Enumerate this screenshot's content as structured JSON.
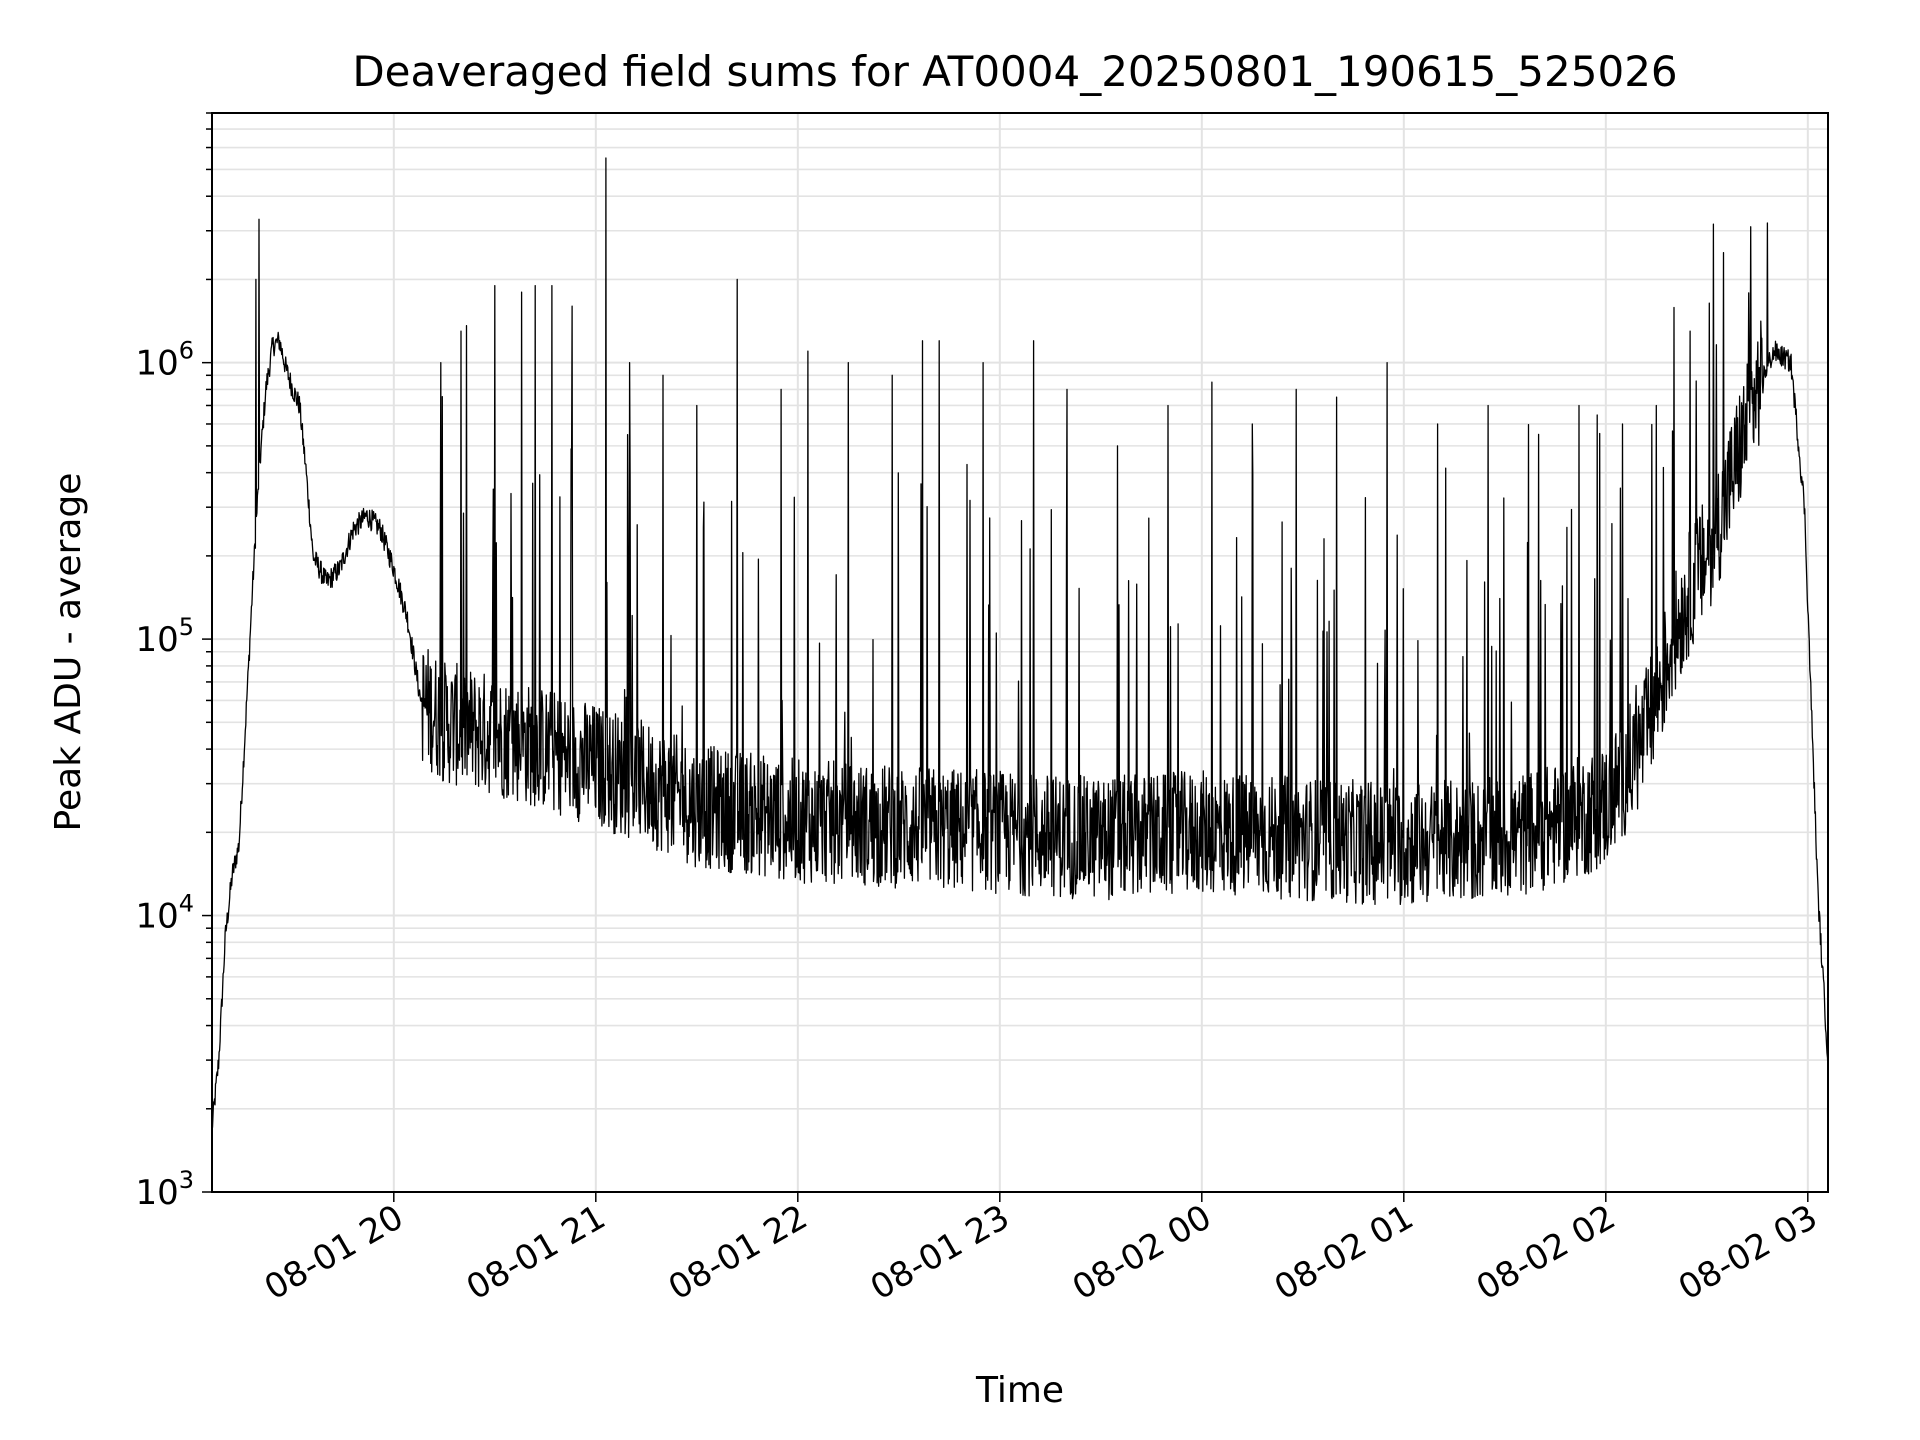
{
  "chart_data": {
    "type": "line",
    "title": "Deaveraged field sums for AT0004_20250801_190615_525026",
    "xlabel": "Time",
    "ylabel": "Peak ADU - average",
    "yscale": "log",
    "ylim": [
      1000,
      8000000
    ],
    "xlim": [
      "2025-08-01 19:06",
      "2025-08-02 03:06"
    ],
    "grid": true,
    "line_color": "#000000",
    "grid_color": "#e3e3e3",
    "x_ticks": [
      {
        "at": "2025-08-01 20:00",
        "label": "08-01 20"
      },
      {
        "at": "2025-08-01 21:00",
        "label": "08-01 21"
      },
      {
        "at": "2025-08-01 22:00",
        "label": "08-01 22"
      },
      {
        "at": "2025-08-01 23:00",
        "label": "08-01 23"
      },
      {
        "at": "2025-08-02 00:00",
        "label": "08-02 00"
      },
      {
        "at": "2025-08-02 01:00",
        "label": "08-02 01"
      },
      {
        "at": "2025-08-02 02:00",
        "label": "08-02 02"
      },
      {
        "at": "2025-08-02 03:00",
        "label": "08-02 03"
      }
    ],
    "y_ticks": [
      {
        "value": 1000,
        "base": "10",
        "exp": "3"
      },
      {
        "value": 10000,
        "base": "10",
        "exp": "4"
      },
      {
        "value": 100000,
        "base": "10",
        "exp": "5"
      },
      {
        "value": 1000000,
        "base": "10",
        "exp": "6"
      }
    ],
    "series": [
      {
        "x": [
          "2025-08-01 19:06",
          "2025-08-01 19:08",
          "2025-08-01 19:10",
          "2025-08-01 19:12",
          "2025-08-01 19:14",
          "2025-08-01 19:16",
          "2025-08-01 19:18",
          "2025-08-01 19:20",
          "2025-08-01 19:22",
          "2025-08-01 19:24",
          "2025-08-01 19:26",
          "2025-08-01 19:28",
          "2025-08-01 19:30",
          "2025-08-01 19:32",
          "2025-08-01 19:34",
          "2025-08-01 19:36",
          "2025-08-01 19:40",
          "2025-08-01 19:44",
          "2025-08-01 19:48",
          "2025-08-01 19:52",
          "2025-08-01 19:56",
          "2025-08-01 20:00",
          "2025-08-01 20:04",
          "2025-08-01 20:08",
          "2025-08-01 20:15",
          "2025-08-01 20:30",
          "2025-08-01 20:45",
          "2025-08-01 21:00",
          "2025-08-01 21:15",
          "2025-08-01 21:30",
          "2025-08-01 22:00",
          "2025-08-01 22:30",
          "2025-08-01 23:00",
          "2025-08-01 23:30",
          "2025-08-02 00:00",
          "2025-08-02 00:30",
          "2025-08-02 01:00",
          "2025-08-02 01:30",
          "2025-08-02 01:50",
          "2025-08-02 02:00",
          "2025-08-02 02:10",
          "2025-08-02 02:15",
          "2025-08-02 02:20",
          "2025-08-02 02:25",
          "2025-08-02 02:30",
          "2025-08-02 02:35",
          "2025-08-02 02:40",
          "2025-08-02 02:45",
          "2025-08-02 02:50",
          "2025-08-02 02:55",
          "2025-08-02 02:59",
          "2025-08-02 03:01",
          "2025-08-02 03:03",
          "2025-08-02 03:06"
        ],
        "y": [
          1700,
          3000,
          8500,
          14000,
          18000,
          50000,
          150000,
          400000,
          800000,
          1150000,
          1200000,
          950000,
          800000,
          700000,
          400000,
          200000,
          160000,
          180000,
          250000,
          280000,
          250000,
          180000,
          120000,
          60000,
          50000,
          45000,
          40000,
          35000,
          30000,
          25000,
          22000,
          21000,
          20000,
          19000,
          20000,
          19000,
          18000,
          19000,
          22000,
          25000,
          40000,
          60000,
          100000,
          150000,
          200000,
          300000,
          500000,
          800000,
          1100000,
          1000000,
          300000,
          60000,
          12000,
          3000
        ],
        "spikes": [
          [
            "2025-08-01 19:20",
            3300000
          ],
          [
            "2025-08-01 19:19",
            2000000
          ],
          [
            "2025-08-01 20:14",
            1000000
          ],
          [
            "2025-08-01 20:20",
            1300000
          ],
          [
            "2025-08-01 20:30",
            1900000
          ],
          [
            "2025-08-01 20:38",
            1800000
          ],
          [
            "2025-08-01 20:42",
            1900000
          ],
          [
            "2025-08-01 20:47",
            1900000
          ],
          [
            "2025-08-01 20:53",
            1600000
          ],
          [
            "2025-08-01 21:03",
            5500000
          ],
          [
            "2025-08-01 21:10",
            1000000
          ],
          [
            "2025-08-01 21:20",
            900000
          ],
          [
            "2025-08-01 21:30",
            700000
          ],
          [
            "2025-08-01 21:42",
            2000000
          ],
          [
            "2025-08-01 21:55",
            800000
          ],
          [
            "2025-08-01 22:03",
            1100000
          ],
          [
            "2025-08-01 22:15",
            1000000
          ],
          [
            "2025-08-01 22:28",
            900000
          ],
          [
            "2025-08-01 22:37",
            1200000
          ],
          [
            "2025-08-01 22:42",
            1200000
          ],
          [
            "2025-08-01 22:55",
            1000000
          ],
          [
            "2025-08-01 23:10",
            1200000
          ],
          [
            "2025-08-01 23:20",
            800000
          ],
          [
            "2025-08-01 23:35",
            500000
          ],
          [
            "2025-08-01 23:50",
            700000
          ],
          [
            "2025-08-02 00:03",
            850000
          ],
          [
            "2025-08-02 00:15",
            600000
          ],
          [
            "2025-08-02 00:28",
            800000
          ],
          [
            "2025-08-02 00:40",
            750000
          ],
          [
            "2025-08-02 00:55",
            1000000
          ],
          [
            "2025-08-02 01:10",
            600000
          ],
          [
            "2025-08-02 01:25",
            700000
          ],
          [
            "2025-08-02 01:40",
            550000
          ],
          [
            "2025-08-02 01:52",
            700000
          ],
          [
            "2025-08-02 02:05",
            600000
          ],
          [
            "2025-08-02 02:15",
            700000
          ],
          [
            "2025-08-02 02:25",
            1300000
          ],
          [
            "2025-08-02 02:35",
            2500000
          ],
          [
            "2025-08-02 02:43",
            3100000
          ],
          [
            "2025-08-02 02:48",
            3200000
          ]
        ]
      }
    ]
  }
}
